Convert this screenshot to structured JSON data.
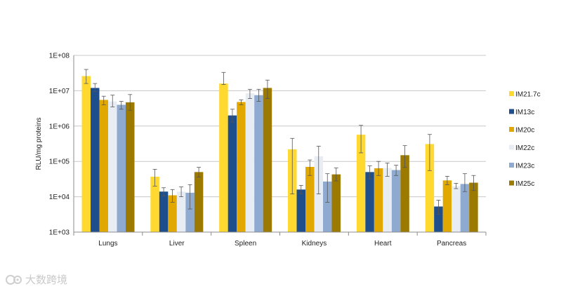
{
  "chart_data": {
    "type": "bar",
    "title": "",
    "xlabel": "",
    "ylabel": "RLU/mg proteins",
    "yscale": "log",
    "ylim": [
      1000,
      100000000
    ],
    "yticks": [
      1000,
      10000,
      100000,
      1000000,
      10000000,
      100000000
    ],
    "ytick_labels": [
      "1E+03",
      "1E+04",
      "1E+05",
      "1E+06",
      "1E+07",
      "1E+08"
    ],
    "grid": true,
    "legend_position": "right",
    "categories": [
      "Lungs",
      "Liver",
      "Spleen",
      "Kidneys",
      "Heart",
      "Pancreas"
    ],
    "series": [
      {
        "name": "IM21.7c",
        "color": "#FFD92F",
        "values": [
          26000000,
          37000,
          16000000,
          220000,
          570000,
          310000
        ],
        "error_low": [
          16000000,
          20000,
          15000000,
          12000,
          175000,
          55000
        ],
        "error_high": [
          40000000,
          60000,
          33000000,
          450000,
          1050000,
          580000
        ]
      },
      {
        "name": "IM13c",
        "color": "#1F4E8C",
        "values": [
          12000000,
          14000,
          2000000,
          16000,
          50000,
          5300
        ],
        "error_low": [
          9500000,
          10500,
          1300000,
          12000,
          32000,
          3200
        ],
        "error_high": [
          16000000,
          18000,
          3000000,
          21000,
          75000,
          8000
        ]
      },
      {
        "name": "IM20c",
        "color": "#E0A800",
        "values": [
          5500000,
          11000,
          4800000,
          70000,
          64000,
          29000
        ],
        "error_low": [
          4000000,
          7000,
          4000000,
          40000,
          40000,
          22000
        ],
        "error_high": [
          7000000,
          16000,
          5500000,
          110000,
          100000,
          38000
        ]
      },
      {
        "name": "IM22c",
        "color": "#E8EDF3",
        "values": [
          5000000,
          14000,
          8500000,
          140000,
          65000,
          20000
        ],
        "error_low": [
          3500000,
          10000,
          6000000,
          12000,
          38000,
          17000
        ],
        "error_high": [
          7500000,
          19000,
          11000000,
          270000,
          90000,
          24000
        ]
      },
      {
        "name": "IM23c",
        "color": "#8FAAD0",
        "values": [
          4000000,
          13000,
          7500000,
          27000,
          57000,
          23000
        ],
        "error_low": [
          3000000,
          4500,
          5000000,
          7000,
          40000,
          14000
        ],
        "error_high": [
          5000000,
          22000,
          11000000,
          45000,
          78000,
          45000
        ]
      },
      {
        "name": "IM25c",
        "color": "#9C7A00",
        "values": [
          4700000,
          50000,
          12000000,
          43000,
          150000,
          25000
        ],
        "error_low": [
          2800000,
          36000,
          6000000,
          28000,
          68000,
          15000
        ],
        "error_high": [
          7800000,
          68000,
          20000000,
          65000,
          280000,
          40000
        ]
      }
    ]
  }
}
